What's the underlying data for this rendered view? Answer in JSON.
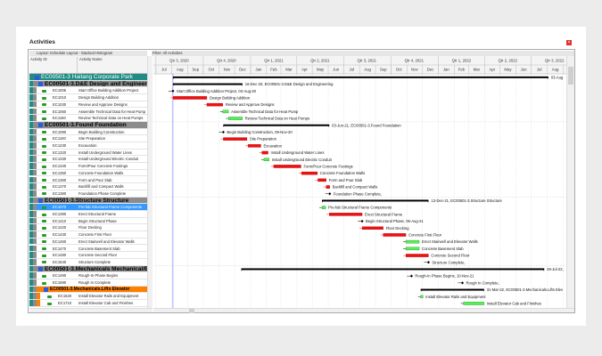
{
  "window": {
    "title": "Activities",
    "layout": "Layout: Schedule Layout - Stacked Histogram",
    "filter": "Filter: All Activities"
  },
  "columns": {
    "id": "Activity ID",
    "name": "Activity Name"
  },
  "colors": {
    "project": "#1f8c86",
    "wbs": "#8c8c8c",
    "selected_wbs": "#ff7f00",
    "selected_row": "#3399ff",
    "critical": "#ee1111",
    "normal": "#55ee55",
    "summary": "#000000"
  },
  "timeline": {
    "quarters": [
      {
        "label": "Qtr 3, 2020",
        "start": "2020-07-01"
      },
      {
        "label": "Qtr 4, 2020",
        "start": "2020-10-01"
      },
      {
        "label": "Qtr 1, 2021",
        "start": "2021-01-01"
      },
      {
        "label": "Qtr 2, 2021",
        "start": "2021-04-01"
      },
      {
        "label": "Qtr 3, 2021",
        "start": "2021-07-01"
      },
      {
        "label": "Qtr 4, 2021",
        "start": "2021-10-01"
      },
      {
        "label": "Qtr 1, 2022",
        "start": "2022-01-01"
      },
      {
        "label": "Qtr 2, 2022",
        "start": "2022-04-01"
      },
      {
        "label": "Qtr 3, 2022",
        "start": "2022-07-01"
      }
    ],
    "months": [
      "Jul",
      "Aug",
      "Sep",
      "Oct",
      "Nov",
      "Dec",
      "Jan",
      "Feb",
      "Mar",
      "Apr",
      "May",
      "Jun",
      "Jul",
      "Aug",
      "Sep",
      "Oct",
      "Nov",
      "Dec",
      "Jan",
      "Feb",
      "Mar",
      "Apr",
      "May",
      "Jun",
      "Jul",
      "Aug",
      "Sep"
    ],
    "data_date": "2020-08-03"
  },
  "rows": [
    {
      "type": "project",
      "id": "EC00501-3",
      "name": "Haitang Corporate Park",
      "bar": "summary",
      "start": "2020-08-03",
      "finish": "2022-08-03",
      "label": "03-Aug"
    },
    {
      "type": "wbs",
      "id": "EC00501-3.D&E",
      "name": "Design and Engineering",
      "bar": "summary",
      "start": "2020-08-03",
      "finish": "2020-12-16",
      "label": "16-Dec-20, EC00501-3.D&E  Design and Engineering"
    },
    {
      "type": "act",
      "id": "EC1005",
      "name": "Start Office Building Addition Project",
      "bar": "milestone",
      "start": "2020-08-03",
      "label": "Start Office Building Addition Project, 03-Aug-20"
    },
    {
      "type": "act",
      "id": "EC1010",
      "name": "Design Building Addition",
      "bar": "critical",
      "start": "2020-08-03",
      "finish": "2020-10-08",
      "label": "Design Building Addition"
    },
    {
      "type": "act",
      "id": "EC1030",
      "name": "Review and Approve Designs",
      "bar": "critical",
      "start": "2020-10-08",
      "finish": "2020-11-08",
      "label": "Review and Approve Designs"
    },
    {
      "type": "act",
      "id": "EC1050",
      "name": "Assemble Technical Data for Heat Pump",
      "bar": "normal",
      "start": "2020-11-08",
      "finish": "2020-11-19",
      "label": "Assemble Technical Data for Heat Pump"
    },
    {
      "type": "act",
      "id": "EC1160",
      "name": "Review Technical Data on Heat Pumps",
      "bar": "normal",
      "start": "2020-11-19",
      "finish": "2020-12-16",
      "label": "Review Technical Data on Heat Pumps"
    },
    {
      "type": "wbs",
      "id": "EC00501-3.Found",
      "name": "Foundation",
      "bar": "summary",
      "start": "2020-11-09",
      "finish": "2021-06-03",
      "label": "03-Jun-21, EC00501-3.Found  Foundation"
    },
    {
      "type": "act",
      "id": "EC1090",
      "name": "Begin Building Construction",
      "bar": "milestone",
      "start": "2020-11-09",
      "label": "Begin Building Construction, 09-Nov-20"
    },
    {
      "type": "act",
      "id": "EC1100",
      "name": "Site Preparation",
      "bar": "critical",
      "start": "2020-11-09",
      "finish": "2020-12-25",
      "label": "Site Preparation"
    },
    {
      "type": "act",
      "id": "EC1230",
      "name": "Excavation",
      "bar": "critical",
      "start": "2020-12-27",
      "finish": "2021-01-21",
      "label": "Excavation"
    },
    {
      "type": "act",
      "id": "EC1320",
      "name": "Install Underground Water Lines",
      "bar": "critical",
      "start": "2021-01-23",
      "finish": "2021-02-04",
      "label": "Install Underground Water Lines"
    },
    {
      "type": "act",
      "id": "EC1330",
      "name": "Install Underground Electric Conduit",
      "bar": "normal",
      "start": "2021-01-27",
      "finish": "2021-02-06",
      "label": "Install Underground Electric Conduit"
    },
    {
      "type": "act",
      "id": "EC1340",
      "name": "Form/Pour Concrete Footings",
      "bar": "critical",
      "start": "2021-02-15",
      "finish": "2021-04-09",
      "label": "Form/Pour Concrete Footings"
    },
    {
      "type": "act",
      "id": "EC1350",
      "name": "Concrete Foundation Walls",
      "bar": "critical",
      "start": "2021-04-10",
      "finish": "2021-05-11",
      "label": "Concrete Foundation Walls"
    },
    {
      "type": "act",
      "id": "EC1360",
      "name": "Form and Pour Slab",
      "bar": "critical",
      "start": "2021-05-12",
      "finish": "2021-05-28",
      "label": "Form and Pour Slab"
    },
    {
      "type": "act",
      "id": "EC1370",
      "name": "Backfill and Compact Walls",
      "bar": "critical",
      "start": "2021-05-28",
      "finish": "2021-06-04",
      "label": "Backfill and Compact Walls"
    },
    {
      "type": "act",
      "id": "EC1380",
      "name": "Foundation Phase Complete",
      "bar": "milestone",
      "start": "2021-06-04",
      "label": "Foundation Phase Complete,"
    },
    {
      "type": "wbs",
      "id": "EC00501-3.Structure",
      "name": "Structure",
      "bar": "summary",
      "start": "2021-05-20",
      "finish": "2021-12-13",
      "label": "13-Dec-21, EC00501-3.Structure  Structure"
    },
    {
      "type": "act",
      "id": "EC1070",
      "name": "Pre-fab Structural Frame Components",
      "bar": "normal",
      "start": "2021-05-20",
      "finish": "2021-05-27",
      "label": "Pre-fab Structural Frame Components",
      "selected": true
    },
    {
      "type": "act",
      "id": "EC1390",
      "name": "Erect Structural Frame",
      "bar": "critical",
      "start": "2021-06-03",
      "finish": "2021-08-06",
      "label": "Erect Structural Frame"
    },
    {
      "type": "act",
      "id": "EC1410",
      "name": "Begin Structural Phase",
      "bar": "milestone",
      "start": "2021-08-06",
      "label": "Begin Structural Phase, 06-Aug-21"
    },
    {
      "type": "act",
      "id": "EC1420",
      "name": "Floor Decking",
      "bar": "critical",
      "start": "2021-08-06",
      "finish": "2021-09-16",
      "label": "Floor Decking"
    },
    {
      "type": "act",
      "id": "EC1430",
      "name": "Concrete First Floor",
      "bar": "critical",
      "start": "2021-09-16",
      "finish": "2021-10-30",
      "label": "Concrete First Floor"
    },
    {
      "type": "act",
      "id": "EC1460",
      "name": "Erect Stairwell and Elevator Walls",
      "bar": "normal",
      "start": "2021-10-30",
      "finish": "2021-11-25",
      "label": "Erect Stairwell and Elevator Walls"
    },
    {
      "type": "act",
      "id": "EC1470",
      "name": "Concrete Basement Slab",
      "bar": "normal",
      "start": "2021-10-30",
      "finish": "2021-11-25",
      "label": "Concrete Basement Slab"
    },
    {
      "type": "act",
      "id": "EC1480",
      "name": "Concrete Second Floor",
      "bar": "critical",
      "start": "2021-10-30",
      "finish": "2021-12-13",
      "label": "Concrete Second Floor"
    },
    {
      "type": "act",
      "id": "EC1540",
      "name": "Structure Complete",
      "bar": "milestone",
      "start": "2021-12-13",
      "label": "Structure Complete,"
    },
    {
      "type": "wbs",
      "id": "EC00501-3.Mechanicals",
      "name": "Mechanical/Elec",
      "bar": "summary",
      "start": "2020-12-14",
      "finish": "2022-07-26",
      "label": "26-Jul-22,"
    },
    {
      "type": "act",
      "id": "EC1490",
      "name": "Rough-In Phase Begins",
      "bar": "milestone",
      "start": "2021-11-10",
      "label": "Rough-In Phase Begins, 10-Nov-21"
    },
    {
      "type": "act",
      "id": "EC1690",
      "name": "Rough In Complete",
      "bar": "milestone",
      "start": "2022-02-17",
      "label": "Rough In Complete,"
    },
    {
      "type": "wbs2",
      "id": "EC00501-3.Mechanicals.Lifts",
      "name": "Elevator",
      "bar": "summary",
      "start": "2021-11-28",
      "finish": "2022-03-31",
      "label": "31-Mar-22, EC00501-3.Mechanicals.Lifts  Elev"
    },
    {
      "type": "act2",
      "id": "EC1520",
      "name": "Install Elevator Rails and Equipment",
      "bar": "normal",
      "start": "2021-11-28",
      "finish": "2021-12-02",
      "label": "Install Elevator Rails and Equipment"
    },
    {
      "type": "act2",
      "id": "EC1710",
      "name": "Install Elevator Cab and Finishes",
      "bar": "normal",
      "start": "2022-02-19",
      "finish": "2022-03-31",
      "label": "Install Elevator Cab and Finishes"
    }
  ]
}
